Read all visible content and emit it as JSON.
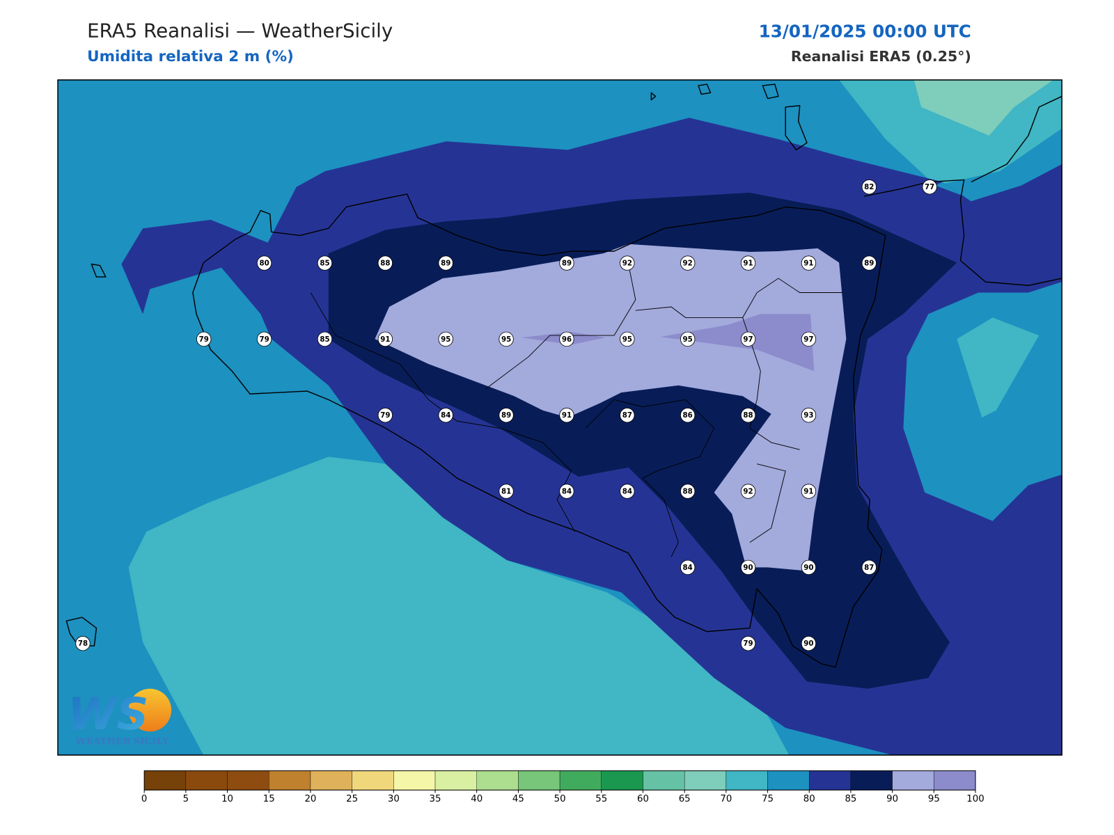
{
  "header": {
    "title": "ERA5 Reanalisi — WeatherSicily",
    "subtitle": "Umidita relativa 2 m (%)",
    "datetime": "13/01/2025 00:00 UTC",
    "source": "Reanalisi ERA5 (0.25°)"
  },
  "logo": {
    "mark": "WS",
    "text": "WEATHER SICILY"
  },
  "grid_values": [
    [
      null,
      null,
      null,
      null,
      null,
      null,
      null,
      null,
      null,
      null,
      null,
      null,
      null,
      82,
      77
    ],
    [
      null,
      null,
      null,
      80,
      85,
      88,
      89,
      null,
      89,
      92,
      92,
      91,
      91,
      89,
      null
    ],
    [
      null,
      null,
      79,
      79,
      85,
      91,
      95,
      95,
      96,
      95,
      95,
      97,
      97,
      null,
      null
    ],
    [
      null,
      null,
      null,
      null,
      null,
      79,
      84,
      89,
      91,
      87,
      86,
      88,
      93,
      null,
      null
    ],
    [
      null,
      null,
      null,
      null,
      null,
      null,
      null,
      81,
      84,
      84,
      88,
      92,
      91,
      null,
      null
    ],
    [
      null,
      null,
      null,
      null,
      null,
      null,
      null,
      null,
      null,
      null,
      84,
      90,
      90,
      87,
      null
    ],
    [
      78,
      null,
      null,
      null,
      null,
      null,
      null,
      null,
      null,
      null,
      null,
      79,
      90,
      null,
      null
    ]
  ],
  "colorbar": {
    "levels": [
      0,
      5,
      10,
      15,
      20,
      25,
      30,
      35,
      40,
      45,
      50,
      55,
      60,
      65,
      70,
      75,
      80,
      85,
      90,
      95,
      100
    ],
    "colors": [
      "#77410a",
      "#8a4a0e",
      "#8e4c10",
      "#bf812d",
      "#dfb15a",
      "#f0d77c",
      "#f6f6a8",
      "#d9f0a3",
      "#addd8e",
      "#78c679",
      "#41ab5d",
      "#1a9850",
      "#66c2a4",
      "#7fcdbb",
      "#41b6c4",
      "#1d91c0",
      "#253494",
      "#081d58",
      "#a3aadc",
      "#8c8ccc"
    ]
  }
}
